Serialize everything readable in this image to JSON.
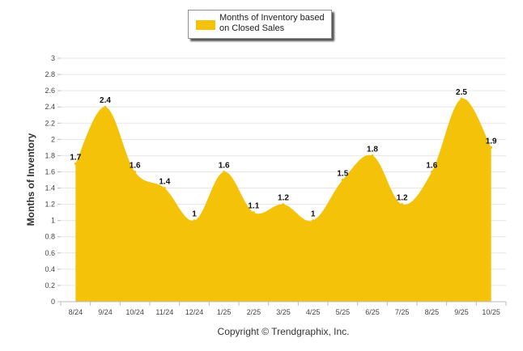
{
  "colors": {
    "series": "#F5C20A",
    "grid": "#e6e6e6",
    "axis": "#bbbbbb"
  },
  "footer": {
    "copyright": "Copyright © Trendgraphix, Inc."
  },
  "chart_data": {
    "type": "area",
    "title": "",
    "xlabel": "",
    "ylabel": "Months of Inventory",
    "ylim": [
      0,
      3
    ],
    "y_ticks": [
      "0",
      "0.2",
      "0.4",
      "0.6",
      "0.8",
      "1",
      "1.2",
      "1.4",
      "1.6",
      "1.8",
      "2",
      "2.2",
      "2.4",
      "2.6",
      "2.8",
      "3"
    ],
    "categories": [
      "8/24",
      "9/24",
      "10/24",
      "11/24",
      "12/24",
      "1/25",
      "2/25",
      "3/25",
      "4/25",
      "5/25",
      "6/25",
      "7/25",
      "8/25",
      "9/25",
      "10/25"
    ],
    "series": [
      {
        "name": "Months of Inventory based on Closed Sales",
        "values": [
          1.7,
          2.4,
          1.6,
          1.4,
          1.0,
          1.6,
          1.1,
          1.2,
          1.0,
          1.5,
          1.8,
          1.2,
          1.6,
          2.5,
          1.9
        ],
        "labels": [
          "1.7",
          "2.4",
          "1.6",
          "1.4",
          "1",
          "1.6",
          "1.1",
          "1.2",
          "1",
          "1.5",
          "1.8",
          "1.2",
          "1.6",
          "2.5",
          "1.9"
        ]
      }
    ],
    "grid": true,
    "legend_position": "top-center"
  }
}
